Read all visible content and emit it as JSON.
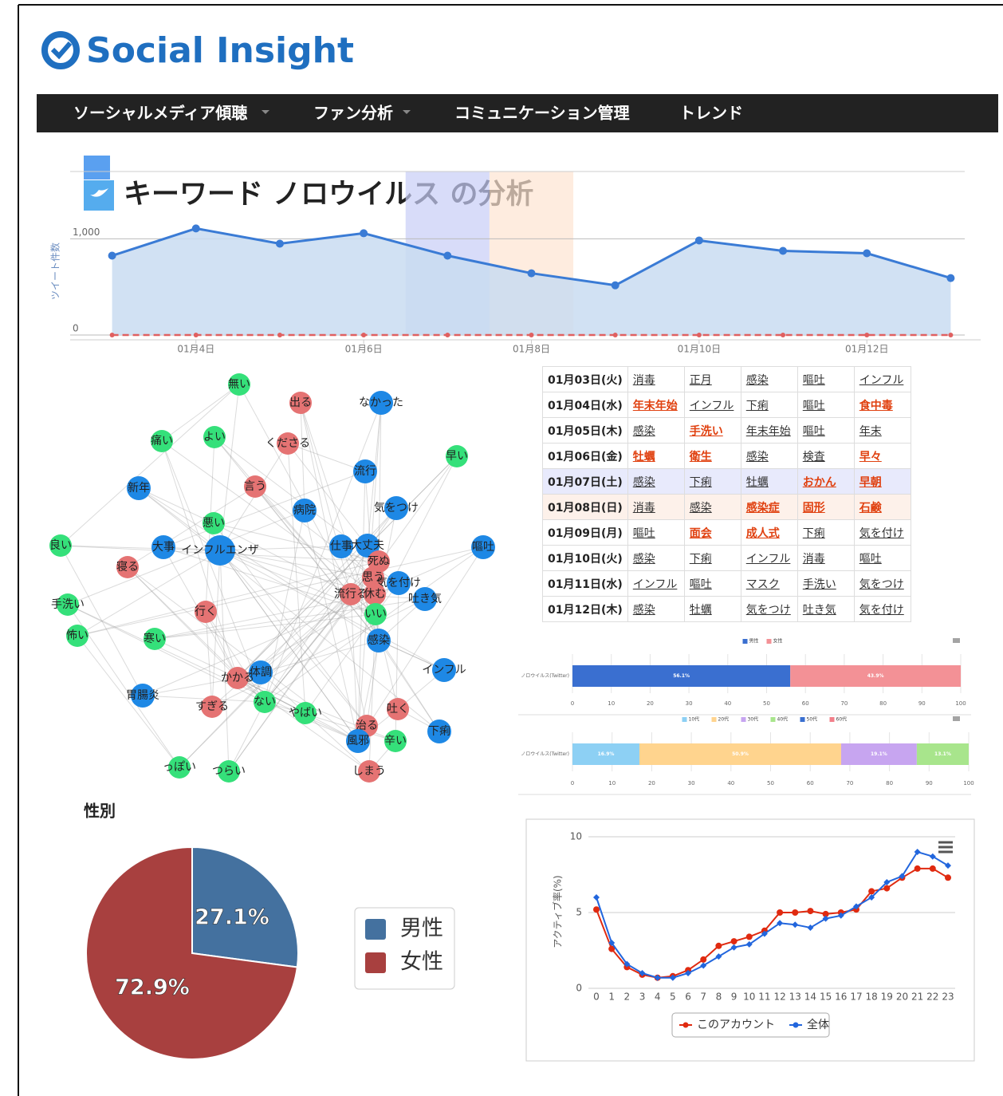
{
  "logo": "Social Insight",
  "nav": [
    "ソーシャルメディア傾聴",
    "ファン分析",
    "コミュニケーション管理",
    "トレンド"
  ],
  "header": {
    "title": "キーワード ノロウイルス の分析"
  },
  "chart_data": [
    {
      "type": "area",
      "y_label": "ツイート件数",
      "categories": [
        null,
        "01月4日",
        null,
        "01月6日",
        null,
        "01月8日",
        null,
        "01月10日",
        null,
        "01月12日",
        null
      ],
      "series": [
        {
          "color": "#3a7bd5",
          "fill": "#c9dcf1",
          "values": [
            825,
            1108,
            950,
            1058,
            825,
            642,
            517,
            983,
            875,
            850,
            592
          ]
        },
        {
          "color": "#e06060",
          "dashed": true,
          "values": [
            0,
            0,
            0,
            0,
            0,
            0,
            0,
            0,
            0,
            0,
            0
          ]
        }
      ],
      "highlight_bands": [
        {
          "index": 4,
          "color": "#c8cdf7"
        },
        {
          "index": 5,
          "color": "#fde4d2"
        }
      ],
      "ylim": [
        0,
        1700
      ],
      "yticks": [
        0,
        {
          "value": 1000,
          "label": "1,000"
        }
      ],
      "grid": true
    },
    {
      "type": "stacked_bar_h",
      "categories": [
        "ノロウイルス(Twitter)"
      ],
      "series": [
        {
          "name": "男性",
          "color": "#3a6fd0",
          "values": [
            56.1
          ],
          "value_labels": [
            "56.1%"
          ]
        },
        {
          "name": "女性",
          "color": "#f39196",
          "values": [
            43.9
          ],
          "value_labels": [
            "43.9%"
          ]
        }
      ],
      "xlim": [
        0,
        100
      ],
      "xticks": [
        0,
        10,
        20,
        30,
        40,
        50,
        60,
        70,
        80,
        90,
        100
      ],
      "legend": "top"
    },
    {
      "type": "stacked_bar_h",
      "categories": [
        "ノロウイルス(Twitter)"
      ],
      "series": [
        {
          "name": "10代",
          "color": "#8dd0f4",
          "values": [
            16.9
          ],
          "value_labels": [
            "16.9%"
          ]
        },
        {
          "name": "20代",
          "color": "#ffd48e",
          "values": [
            50.9
          ],
          "value_labels": [
            "50.9%"
          ]
        },
        {
          "name": "30代",
          "color": "#c7a5f0",
          "values": [
            19.1
          ],
          "value_labels": [
            "19.1%"
          ]
        },
        {
          "name": "40代",
          "color": "#a8e58c",
          "values": [
            13.1
          ],
          "value_labels": [
            "13.1%"
          ]
        },
        {
          "name": "50代",
          "color": "#3a6fd0",
          "values": [
            0
          ]
        },
        {
          "name": "60代",
          "color": "#f27f8a",
          "values": [
            0
          ]
        }
      ],
      "xlim": [
        0,
        100
      ],
      "xticks": [
        0,
        10,
        20,
        30,
        40,
        50,
        60,
        70,
        80,
        90,
        100
      ],
      "legend": "top"
    },
    {
      "type": "pie",
      "title": "性別",
      "categories": [
        "男性",
        "女性"
      ],
      "values": [
        27.1,
        72.9
      ],
      "value_labels": [
        "27.1%",
        "72.9%"
      ],
      "colors": [
        "#44719f",
        "#a8403f"
      ],
      "legend": "right"
    },
    {
      "type": "line",
      "y_label": "アクティブ率(%)",
      "x": [
        0,
        1,
        2,
        3,
        4,
        5,
        6,
        7,
        8,
        9,
        10,
        11,
        12,
        13,
        14,
        15,
        16,
        17,
        18,
        19,
        20,
        21,
        22,
        23
      ],
      "xlim": [
        0,
        23
      ],
      "xticks": [
        0,
        1,
        2,
        3,
        4,
        5,
        6,
        7,
        8,
        9,
        10,
        11,
        12,
        13,
        14,
        15,
        16,
        17,
        18,
        19,
        20,
        21,
        22,
        23
      ],
      "series": [
        {
          "name": "このアカウント",
          "color": "#e02a10",
          "values": [
            5.2,
            2.6,
            1.4,
            0.9,
            0.7,
            0.8,
            1.2,
            1.9,
            2.8,
            3.1,
            3.4,
            3.8,
            5.0,
            5.0,
            5.1,
            4.9,
            5.0,
            5.2,
            6.4,
            6.6,
            7.3,
            7.9,
            7.9,
            7.3
          ]
        },
        {
          "name": "全体",
          "color": "#2266dd",
          "values": [
            6.0,
            3.0,
            1.6,
            1.0,
            0.7,
            0.7,
            1.0,
            1.5,
            2.1,
            2.7,
            2.9,
            3.6,
            4.3,
            4.2,
            4.0,
            4.6,
            4.8,
            5.4,
            6.0,
            7.0,
            7.4,
            9.0,
            8.7,
            8.1
          ]
        }
      ],
      "ylim": [
        0,
        10
      ],
      "yticks": [
        0,
        5,
        10
      ],
      "grid": true,
      "legend": "bottom"
    }
  ],
  "network": {
    "nodes": [
      {
        "label": "無い",
        "group": "green"
      },
      {
        "label": "出る",
        "group": "red"
      },
      {
        "label": "なかった",
        "group": "blue"
      },
      {
        "label": "痛い",
        "group": "green"
      },
      {
        "label": "よい",
        "group": "green"
      },
      {
        "label": "くださる",
        "group": "red"
      },
      {
        "label": "早い",
        "group": "green"
      },
      {
        "label": "流行",
        "group": "blue"
      },
      {
        "label": "新年",
        "group": "blue"
      },
      {
        "label": "言う",
        "group": "red"
      },
      {
        "label": "病院",
        "group": "blue"
      },
      {
        "label": "気をつけ",
        "group": "blue"
      },
      {
        "label": "悪い",
        "group": "green"
      },
      {
        "label": "良い",
        "group": "green"
      },
      {
        "label": "大事",
        "group": "blue"
      },
      {
        "label": "インフルエンザ",
        "group": "blue"
      },
      {
        "label": "仕事",
        "group": "blue"
      },
      {
        "label": "大丈夫",
        "group": "blue"
      },
      {
        "label": "嘔吐",
        "group": "blue"
      },
      {
        "label": "寝る",
        "group": "red"
      },
      {
        "label": "死ぬ",
        "group": "red"
      },
      {
        "label": "思う",
        "group": "red"
      },
      {
        "label": "気を付け",
        "group": "blue"
      },
      {
        "label": "流行る",
        "group": "red"
      },
      {
        "label": "休む",
        "group": "red"
      },
      {
        "label": "吐き気",
        "group": "blue"
      },
      {
        "label": "手洗い",
        "group": "green"
      },
      {
        "label": "行く",
        "group": "red"
      },
      {
        "label": "いい",
        "group": "green"
      },
      {
        "label": "怖い",
        "group": "green"
      },
      {
        "label": "寒い",
        "group": "green"
      },
      {
        "label": "感染",
        "group": "blue"
      },
      {
        "label": "インフル",
        "group": "blue"
      },
      {
        "label": "体調",
        "group": "blue"
      },
      {
        "label": "かかる",
        "group": "red"
      },
      {
        "label": "胃腸炎",
        "group": "blue"
      },
      {
        "label": "ない",
        "group": "green"
      },
      {
        "label": "すぎる",
        "group": "red"
      },
      {
        "label": "やばい",
        "group": "green"
      },
      {
        "label": "吐く",
        "group": "red"
      },
      {
        "label": "治る",
        "group": "red"
      },
      {
        "label": "下痢",
        "group": "blue"
      },
      {
        "label": "風邪",
        "group": "blue"
      },
      {
        "label": "辛い",
        "group": "green"
      },
      {
        "label": "っぽい",
        "group": "green"
      },
      {
        "label": "つらい",
        "group": "green"
      },
      {
        "label": "しまう",
        "group": "red"
      }
    ],
    "colors": {
      "blue": "#1e88e5",
      "red": "#e57373",
      "green": "#35e07a"
    }
  },
  "table": {
    "rows": [
      {
        "date": "01月03日(火)",
        "words": [
          "消毒",
          "正月",
          "感染",
          "嘔吐",
          "インフル"
        ],
        "hot": [
          false,
          false,
          false,
          false,
          false
        ]
      },
      {
        "date": "01月04日(水)",
        "words": [
          "年末年始",
          "インフル",
          "下痢",
          "嘔吐",
          "食中毒"
        ],
        "hot": [
          true,
          false,
          false,
          false,
          true
        ]
      },
      {
        "date": "01月05日(木)",
        "words": [
          "感染",
          "手洗い",
          "年末年始",
          "嘔吐",
          "年末"
        ],
        "hot": [
          false,
          true,
          false,
          false,
          false
        ]
      },
      {
        "date": "01月06日(金)",
        "words": [
          "牡蠣",
          "衛生",
          "感染",
          "検査",
          "早々"
        ],
        "hot": [
          true,
          true,
          false,
          false,
          true
        ]
      },
      {
        "date": "01月07日(土)",
        "words": [
          "感染",
          "下痢",
          "牡蠣",
          "おかん",
          "早朝"
        ],
        "hot": [
          false,
          false,
          false,
          true,
          true
        ],
        "background": "#e8eafc"
      },
      {
        "date": "01月08日(日)",
        "words": [
          "消毒",
          "感染",
          "感染症",
          "固形",
          "石鹸"
        ],
        "hot": [
          false,
          false,
          true,
          true,
          true
        ],
        "background": "#fdf1ea"
      },
      {
        "date": "01月09日(月)",
        "words": [
          "嘔吐",
          "面会",
          "成人式",
          "下痢",
          "気を付け"
        ],
        "hot": [
          false,
          true,
          true,
          false,
          false
        ]
      },
      {
        "date": "01月10日(火)",
        "words": [
          "感染",
          "下痢",
          "インフル",
          "消毒",
          "嘔吐"
        ],
        "hot": [
          false,
          false,
          false,
          false,
          false
        ]
      },
      {
        "date": "01月11日(水)",
        "words": [
          "インフル",
          "嘔吐",
          "マスク",
          "手洗い",
          "気をつけ"
        ],
        "hot": [
          false,
          false,
          false,
          false,
          false
        ]
      },
      {
        "date": "01月12日(木)",
        "words": [
          "感染",
          "牡蠣",
          "気をつけ",
          "吐き気",
          "気を付け"
        ],
        "hot": [
          false,
          false,
          false,
          false,
          false
        ]
      }
    ]
  }
}
